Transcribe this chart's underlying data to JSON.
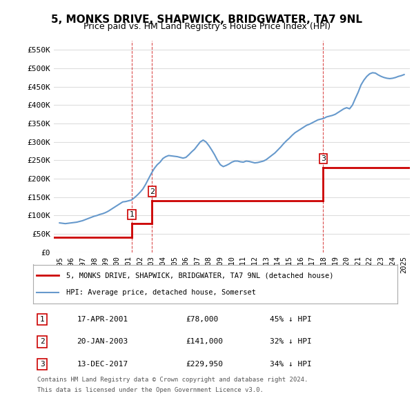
{
  "title": "5, MONKS DRIVE, SHAPWICK, BRIDGWATER, TA7 9NL",
  "subtitle": "Price paid vs. HM Land Registry's House Price Index (HPI)",
  "ylabel_ticks": [
    "£0",
    "£50K",
    "£100K",
    "£150K",
    "£200K",
    "£250K",
    "£300K",
    "£350K",
    "£400K",
    "£450K",
    "£500K",
    "£550K"
  ],
  "ytick_values": [
    0,
    50000,
    100000,
    150000,
    200000,
    250000,
    300000,
    350000,
    400000,
    450000,
    500000,
    550000
  ],
  "ylim": [
    0,
    575000
  ],
  "xlim_min": 1994.5,
  "xlim_max": 2025.5,
  "xtick_years": [
    1995,
    1996,
    1997,
    1998,
    1999,
    2000,
    2001,
    2002,
    2003,
    2004,
    2005,
    2006,
    2007,
    2008,
    2009,
    2010,
    2011,
    2012,
    2013,
    2014,
    2015,
    2016,
    2017,
    2018,
    2019,
    2020,
    2021,
    2022,
    2023,
    2024,
    2025
  ],
  "transactions": [
    {
      "num": 1,
      "date": "17-APR-2001",
      "price": 78000,
      "year": 2001.29,
      "hpi_pct": "45% ↓ HPI"
    },
    {
      "num": 2,
      "date": "20-JAN-2003",
      "price": 141000,
      "year": 2003.05,
      "hpi_pct": "32% ↓ HPI"
    },
    {
      "num": 3,
      "date": "13-DEC-2017",
      "price": 229950,
      "year": 2017.95,
      "hpi_pct": "34% ↓ HPI"
    }
  ],
  "red_line_color": "#cc0000",
  "blue_line_color": "#6699cc",
  "vline_color": "#cc0000",
  "grid_color": "#dddddd",
  "bg_color": "#ffffff",
  "legend_box_color": "#cc0000",
  "legend1": "5, MONKS DRIVE, SHAPWICK, BRIDGWATER, TA7 9NL (detached house)",
  "legend2": "HPI: Average price, detached house, Somerset",
  "footer1": "Contains HM Land Registry data © Crown copyright and database right 2024.",
  "footer2": "This data is licensed under the Open Government Licence v3.0.",
  "hpi_data": {
    "years": [
      1995.0,
      1995.25,
      1995.5,
      1995.75,
      1996.0,
      1996.25,
      1996.5,
      1996.75,
      1997.0,
      1997.25,
      1997.5,
      1997.75,
      1998.0,
      1998.25,
      1998.5,
      1998.75,
      1999.0,
      1999.25,
      1999.5,
      1999.75,
      2000.0,
      2000.25,
      2000.5,
      2000.75,
      2001.0,
      2001.25,
      2001.5,
      2001.75,
      2002.0,
      2002.25,
      2002.5,
      2002.75,
      2003.0,
      2003.25,
      2003.5,
      2003.75,
      2004.0,
      2004.25,
      2004.5,
      2004.75,
      2005.0,
      2005.25,
      2005.5,
      2005.75,
      2006.0,
      2006.25,
      2006.5,
      2006.75,
      2007.0,
      2007.25,
      2007.5,
      2007.75,
      2008.0,
      2008.25,
      2008.5,
      2008.75,
      2009.0,
      2009.25,
      2009.5,
      2009.75,
      2010.0,
      2010.25,
      2010.5,
      2010.75,
      2011.0,
      2011.25,
      2011.5,
      2011.75,
      2012.0,
      2012.25,
      2012.5,
      2012.75,
      2013.0,
      2013.25,
      2013.5,
      2013.75,
      2014.0,
      2014.25,
      2014.5,
      2014.75,
      2015.0,
      2015.25,
      2015.5,
      2015.75,
      2016.0,
      2016.25,
      2016.5,
      2016.75,
      2017.0,
      2017.25,
      2017.5,
      2017.75,
      2018.0,
      2018.25,
      2018.5,
      2018.75,
      2019.0,
      2019.25,
      2019.5,
      2019.75,
      2020.0,
      2020.25,
      2020.5,
      2020.75,
      2021.0,
      2021.25,
      2021.5,
      2021.75,
      2022.0,
      2022.25,
      2022.5,
      2022.75,
      2023.0,
      2023.25,
      2023.5,
      2023.75,
      2024.0,
      2024.25,
      2024.5,
      2024.75,
      2025.0
    ],
    "values": [
      80000,
      79000,
      78000,
      79000,
      80000,
      81000,
      82000,
      84000,
      86000,
      89000,
      92000,
      95000,
      98000,
      100000,
      103000,
      105000,
      108000,
      112000,
      117000,
      122000,
      127000,
      132000,
      137000,
      138000,
      140000,
      142000,
      148000,
      155000,
      163000,
      172000,
      185000,
      200000,
      215000,
      228000,
      238000,
      245000,
      255000,
      260000,
      263000,
      262000,
      261000,
      260000,
      258000,
      256000,
      258000,
      265000,
      273000,
      280000,
      290000,
      300000,
      305000,
      300000,
      290000,
      278000,
      265000,
      250000,
      238000,
      233000,
      236000,
      240000,
      245000,
      248000,
      248000,
      246000,
      245000,
      248000,
      247000,
      245000,
      243000,
      244000,
      246000,
      248000,
      252000,
      258000,
      264000,
      270000,
      278000,
      286000,
      295000,
      303000,
      310000,
      318000,
      325000,
      330000,
      335000,
      340000,
      345000,
      348000,
      352000,
      356000,
      360000,
      362000,
      364000,
      368000,
      370000,
      372000,
      375000,
      380000,
      385000,
      390000,
      393000,
      390000,
      400000,
      418000,
      435000,
      455000,
      468000,
      478000,
      485000,
      488000,
      487000,
      482000,
      478000,
      475000,
      473000,
      472000,
      473000,
      475000,
      478000,
      480000,
      483000
    ]
  },
  "red_line_segments": [
    {
      "x": [
        1994.5,
        2001.29
      ],
      "y": [
        40000,
        40000
      ]
    },
    {
      "x": [
        2001.29,
        2001.29
      ],
      "y": [
        40000,
        78000
      ]
    },
    {
      "x": [
        2001.29,
        2003.05
      ],
      "y": [
        78000,
        78000
      ]
    },
    {
      "x": [
        2003.05,
        2003.05
      ],
      "y": [
        78000,
        141000
      ]
    },
    {
      "x": [
        2003.05,
        2017.95
      ],
      "y": [
        141000,
        141000
      ]
    },
    {
      "x": [
        2017.95,
        2017.95
      ],
      "y": [
        141000,
        229950
      ]
    },
    {
      "x": [
        2017.95,
        2025.5
      ],
      "y": [
        229950,
        229950
      ]
    }
  ]
}
